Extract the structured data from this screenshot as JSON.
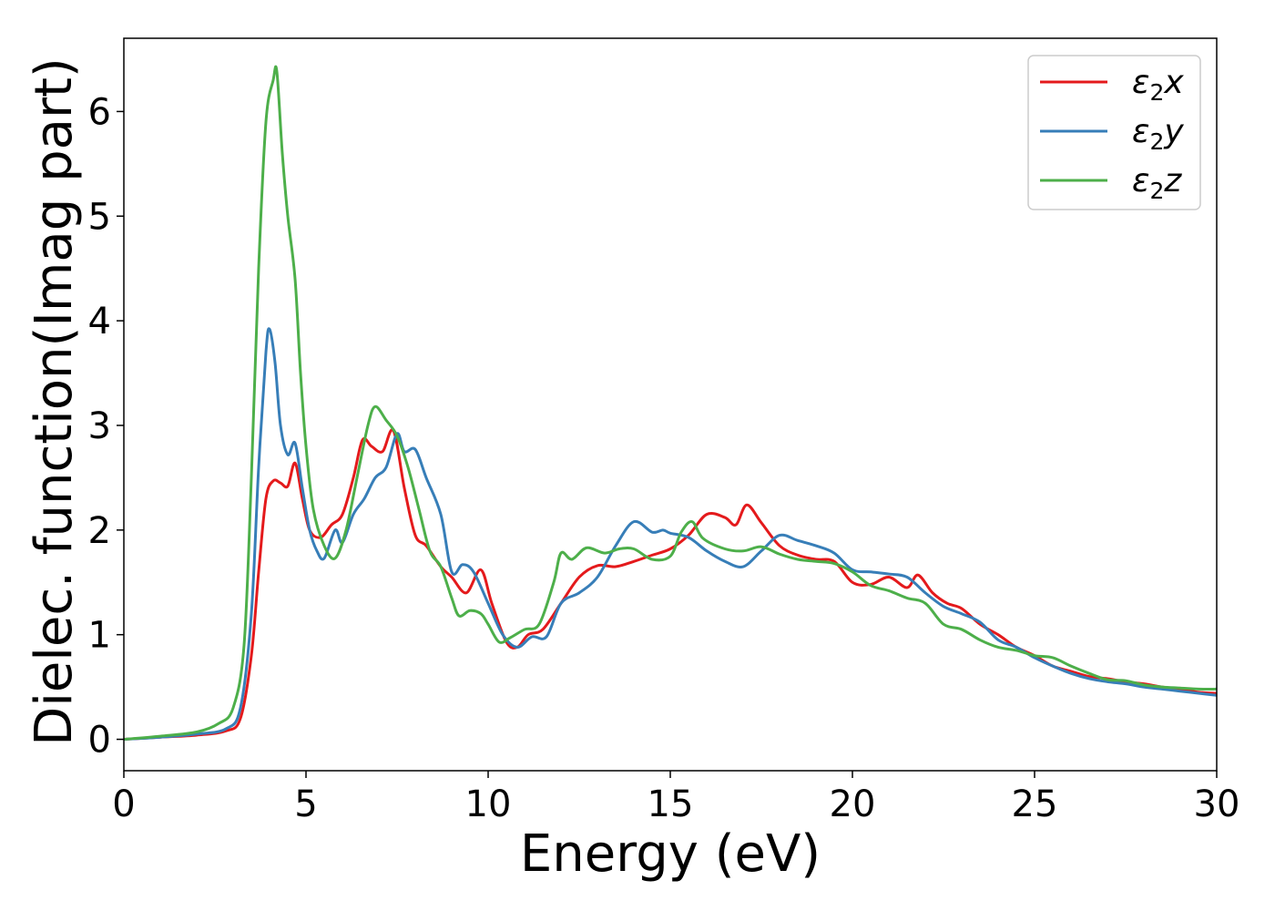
{
  "chart_data": {
    "type": "line",
    "xlabel": "Energy (eV)",
    "ylabel": "Dielec. function(Imag part)",
    "xlim": [
      0,
      30
    ],
    "ylim": [
      -0.3,
      6.7
    ],
    "x_ticks": [
      "0",
      "5",
      "10",
      "15",
      "20",
      "25",
      "30"
    ],
    "y_ticks": [
      "0",
      "1",
      "2",
      "3",
      "4",
      "5",
      "6"
    ],
    "x_tick_values": [
      0,
      5,
      10,
      15,
      20,
      25,
      30
    ],
    "y_tick_values": [
      0,
      1,
      2,
      3,
      4,
      5,
      6
    ],
    "legend_position": "top-right",
    "grid": false,
    "series": [
      {
        "name": "ε2x",
        "legend": {
          "base": "ε",
          "sub": "2",
          "suffix": "x"
        },
        "color": "#e41a1c",
        "points": [
          [
            0,
            0
          ],
          [
            1,
            0.02
          ],
          [
            2,
            0.04
          ],
          [
            2.8,
            0.08
          ],
          [
            3.2,
            0.2
          ],
          [
            3.5,
            0.8
          ],
          [
            3.7,
            1.6
          ],
          [
            3.9,
            2.3
          ],
          [
            4.1,
            2.47
          ],
          [
            4.3,
            2.45
          ],
          [
            4.5,
            2.42
          ],
          [
            4.7,
            2.64
          ],
          [
            4.9,
            2.3
          ],
          [
            5.1,
            2.0
          ],
          [
            5.4,
            1.93
          ],
          [
            5.7,
            2.05
          ],
          [
            6.0,
            2.15
          ],
          [
            6.3,
            2.5
          ],
          [
            6.55,
            2.86
          ],
          [
            6.8,
            2.8
          ],
          [
            7.1,
            2.75
          ],
          [
            7.4,
            2.95
          ],
          [
            7.7,
            2.4
          ],
          [
            8.0,
            1.95
          ],
          [
            8.3,
            1.85
          ],
          [
            8.7,
            1.65
          ],
          [
            9.0,
            1.55
          ],
          [
            9.4,
            1.4
          ],
          [
            9.8,
            1.62
          ],
          [
            10.1,
            1.3
          ],
          [
            10.5,
            0.93
          ],
          [
            10.8,
            0.88
          ],
          [
            11.1,
            1.0
          ],
          [
            11.5,
            1.05
          ],
          [
            12.0,
            1.3
          ],
          [
            12.5,
            1.55
          ],
          [
            13.0,
            1.66
          ],
          [
            13.5,
            1.65
          ],
          [
            14.0,
            1.7
          ],
          [
            14.5,
            1.76
          ],
          [
            15.0,
            1.82
          ],
          [
            15.5,
            1.95
          ],
          [
            16.0,
            2.15
          ],
          [
            16.5,
            2.12
          ],
          [
            16.8,
            2.05
          ],
          [
            17.1,
            2.24
          ],
          [
            17.5,
            2.07
          ],
          [
            18.0,
            1.85
          ],
          [
            18.5,
            1.76
          ],
          [
            19.0,
            1.72
          ],
          [
            19.5,
            1.7
          ],
          [
            20.0,
            1.5
          ],
          [
            20.5,
            1.48
          ],
          [
            21.0,
            1.55
          ],
          [
            21.5,
            1.45
          ],
          [
            21.8,
            1.57
          ],
          [
            22.2,
            1.4
          ],
          [
            22.6,
            1.3
          ],
          [
            23.0,
            1.25
          ],
          [
            23.5,
            1.1
          ],
          [
            24.0,
            1.0
          ],
          [
            24.5,
            0.88
          ],
          [
            25.0,
            0.8
          ],
          [
            25.5,
            0.7
          ],
          [
            26.0,
            0.65
          ],
          [
            26.5,
            0.6
          ],
          [
            27.0,
            0.58
          ],
          [
            27.5,
            0.55
          ],
          [
            28.0,
            0.53
          ],
          [
            28.5,
            0.5
          ],
          [
            29.0,
            0.48
          ],
          [
            29.5,
            0.45
          ],
          [
            30.0,
            0.44
          ]
        ]
      },
      {
        "name": "ε2y",
        "legend": {
          "base": "ε",
          "sub": "2",
          "suffix": "y"
        },
        "color": "#377eb8",
        "points": [
          [
            0,
            0
          ],
          [
            1,
            0.02
          ],
          [
            2,
            0.05
          ],
          [
            2.8,
            0.1
          ],
          [
            3.2,
            0.3
          ],
          [
            3.5,
            1.2
          ],
          [
            3.7,
            2.6
          ],
          [
            3.9,
            3.7
          ],
          [
            4.0,
            3.92
          ],
          [
            4.15,
            3.6
          ],
          [
            4.3,
            3.0
          ],
          [
            4.5,
            2.72
          ],
          [
            4.7,
            2.83
          ],
          [
            4.9,
            2.4
          ],
          [
            5.1,
            2.0
          ],
          [
            5.3,
            1.8
          ],
          [
            5.5,
            1.73
          ],
          [
            5.8,
            2.0
          ],
          [
            6.0,
            1.88
          ],
          [
            6.3,
            2.15
          ],
          [
            6.6,
            2.3
          ],
          [
            6.9,
            2.5
          ],
          [
            7.2,
            2.6
          ],
          [
            7.5,
            2.92
          ],
          [
            7.7,
            2.75
          ],
          [
            8.0,
            2.77
          ],
          [
            8.3,
            2.5
          ],
          [
            8.7,
            2.15
          ],
          [
            9.0,
            1.6
          ],
          [
            9.3,
            1.67
          ],
          [
            9.6,
            1.6
          ],
          [
            10.0,
            1.3
          ],
          [
            10.4,
            1.0
          ],
          [
            10.8,
            0.88
          ],
          [
            11.2,
            0.98
          ],
          [
            11.6,
            0.98
          ],
          [
            12.0,
            1.3
          ],
          [
            12.5,
            1.4
          ],
          [
            13.0,
            1.55
          ],
          [
            13.5,
            1.85
          ],
          [
            14.0,
            2.08
          ],
          [
            14.5,
            1.98
          ],
          [
            14.8,
            2.0
          ],
          [
            15.0,
            1.97
          ],
          [
            15.5,
            1.93
          ],
          [
            16.0,
            1.8
          ],
          [
            16.5,
            1.7
          ],
          [
            17.0,
            1.65
          ],
          [
            17.5,
            1.8
          ],
          [
            18.0,
            1.95
          ],
          [
            18.5,
            1.9
          ],
          [
            19.0,
            1.85
          ],
          [
            19.5,
            1.78
          ],
          [
            20.0,
            1.62
          ],
          [
            20.5,
            1.6
          ],
          [
            21.0,
            1.58
          ],
          [
            21.5,
            1.55
          ],
          [
            22.0,
            1.4
          ],
          [
            22.5,
            1.27
          ],
          [
            23.0,
            1.2
          ],
          [
            23.5,
            1.12
          ],
          [
            24.0,
            0.95
          ],
          [
            24.5,
            0.88
          ],
          [
            25.0,
            0.78
          ],
          [
            25.5,
            0.7
          ],
          [
            26.0,
            0.63
          ],
          [
            26.5,
            0.58
          ],
          [
            27.0,
            0.55
          ],
          [
            27.5,
            0.53
          ],
          [
            28.0,
            0.5
          ],
          [
            28.5,
            0.48
          ],
          [
            29.0,
            0.46
          ],
          [
            29.5,
            0.44
          ],
          [
            30.0,
            0.42
          ]
        ]
      },
      {
        "name": "ε2z",
        "legend": {
          "base": "ε",
          "sub": "2",
          "suffix": "z"
        },
        "color": "#4daf4a",
        "points": [
          [
            0,
            0
          ],
          [
            1,
            0.03
          ],
          [
            2,
            0.07
          ],
          [
            2.6,
            0.15
          ],
          [
            3.0,
            0.3
          ],
          [
            3.3,
            0.9
          ],
          [
            3.5,
            2.5
          ],
          [
            3.7,
            4.5
          ],
          [
            3.9,
            5.9
          ],
          [
            4.1,
            6.3
          ],
          [
            4.2,
            6.38
          ],
          [
            4.35,
            5.6
          ],
          [
            4.5,
            5.0
          ],
          [
            4.7,
            4.4
          ],
          [
            4.85,
            3.5
          ],
          [
            5.0,
            2.8
          ],
          [
            5.2,
            2.2
          ],
          [
            5.5,
            1.85
          ],
          [
            5.8,
            1.73
          ],
          [
            6.1,
            2.0
          ],
          [
            6.4,
            2.5
          ],
          [
            6.7,
            3.0
          ],
          [
            6.9,
            3.18
          ],
          [
            7.2,
            3.05
          ],
          [
            7.5,
            2.9
          ],
          [
            7.8,
            2.6
          ],
          [
            8.1,
            2.2
          ],
          [
            8.4,
            1.8
          ],
          [
            8.7,
            1.65
          ],
          [
            9.0,
            1.35
          ],
          [
            9.2,
            1.18
          ],
          [
            9.5,
            1.23
          ],
          [
            9.8,
            1.2
          ],
          [
            10.0,
            1.1
          ],
          [
            10.3,
            0.93
          ],
          [
            10.6,
            0.97
          ],
          [
            11.0,
            1.05
          ],
          [
            11.4,
            1.1
          ],
          [
            11.8,
            1.5
          ],
          [
            12.0,
            1.78
          ],
          [
            12.3,
            1.72
          ],
          [
            12.7,
            1.83
          ],
          [
            13.2,
            1.78
          ],
          [
            13.6,
            1.82
          ],
          [
            14.0,
            1.82
          ],
          [
            14.5,
            1.72
          ],
          [
            15.0,
            1.75
          ],
          [
            15.3,
            1.98
          ],
          [
            15.6,
            2.08
          ],
          [
            15.9,
            1.92
          ],
          [
            16.5,
            1.82
          ],
          [
            17.0,
            1.8
          ],
          [
            17.5,
            1.84
          ],
          [
            18.0,
            1.77
          ],
          [
            18.5,
            1.72
          ],
          [
            19.0,
            1.7
          ],
          [
            19.5,
            1.68
          ],
          [
            20.0,
            1.6
          ],
          [
            20.5,
            1.47
          ],
          [
            21.0,
            1.42
          ],
          [
            21.5,
            1.35
          ],
          [
            22.0,
            1.3
          ],
          [
            22.5,
            1.1
          ],
          [
            23.0,
            1.05
          ],
          [
            23.5,
            0.95
          ],
          [
            24.0,
            0.88
          ],
          [
            24.5,
            0.85
          ],
          [
            25.0,
            0.8
          ],
          [
            25.5,
            0.78
          ],
          [
            26.0,
            0.7
          ],
          [
            26.5,
            0.63
          ],
          [
            27.0,
            0.57
          ],
          [
            27.5,
            0.56
          ],
          [
            28.0,
            0.52
          ],
          [
            28.5,
            0.5
          ],
          [
            29.0,
            0.49
          ],
          [
            29.5,
            0.48
          ],
          [
            30.0,
            0.48
          ]
        ]
      }
    ]
  }
}
